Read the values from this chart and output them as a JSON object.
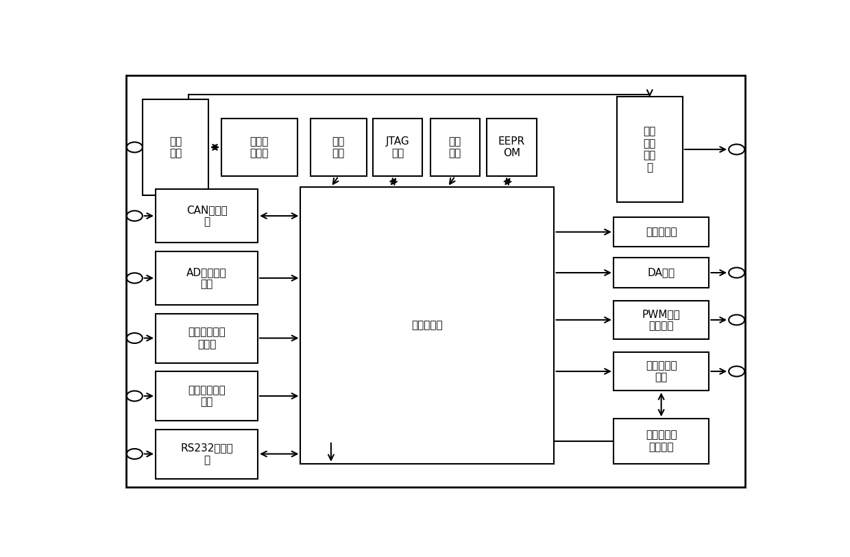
{
  "fig_width": 12.4,
  "fig_height": 8.13,
  "bg_color": "#ffffff",
  "lw": 1.5,
  "font_size": 11,
  "outer": [
    0.03,
    0.02,
    0.94,
    0.96
  ],
  "boxes": {
    "sys_power": [
      0.055,
      0.7,
      0.1,
      0.225,
      "系统\n电源"
    ],
    "power_delay": [
      0.175,
      0.745,
      0.115,
      0.135,
      "掉电延\n迟模块"
    ],
    "crystal": [
      0.31,
      0.745,
      0.085,
      0.135,
      "晶振\n电路"
    ],
    "jtag": [
      0.405,
      0.745,
      0.075,
      0.135,
      "JTAG\n接口"
    ],
    "reset": [
      0.492,
      0.745,
      0.075,
      0.135,
      "复位\n电路"
    ],
    "eeprom": [
      0.578,
      0.745,
      0.075,
      0.135,
      "EEPR\nOM"
    ],
    "sensor_power": [
      0.775,
      0.685,
      0.1,
      0.245,
      "传感\n器供\n电电\n源"
    ],
    "cpu": [
      0.295,
      0.075,
      0.385,
      0.645,
      "中央处理器"
    ],
    "can": [
      0.075,
      0.59,
      0.155,
      0.125,
      "CAN通信模\n块"
    ],
    "ad": [
      0.075,
      0.445,
      0.155,
      0.125,
      "AD信号处理\n模块"
    ],
    "switch_sig": [
      0.075,
      0.31,
      0.155,
      0.115,
      "开关量信号处\n理模块"
    ],
    "freq": [
      0.075,
      0.175,
      0.155,
      0.115,
      "频率信号处理\n模块"
    ],
    "rs232": [
      0.075,
      0.04,
      0.155,
      0.115,
      "RS232通信模\n块"
    ],
    "run_led": [
      0.77,
      0.58,
      0.145,
      0.07,
      "运行指示灯"
    ],
    "da": [
      0.77,
      0.485,
      0.145,
      0.07,
      "DA模块"
    ],
    "pwm": [
      0.77,
      0.365,
      0.145,
      0.09,
      "PWM信号\n驱动模块"
    ],
    "high_power": [
      0.77,
      0.245,
      0.145,
      0.09,
      "大功率驱动\n模块"
    ],
    "fault": [
      0.77,
      0.075,
      0.145,
      0.105,
      "故障检测及\n保护模块"
    ]
  }
}
